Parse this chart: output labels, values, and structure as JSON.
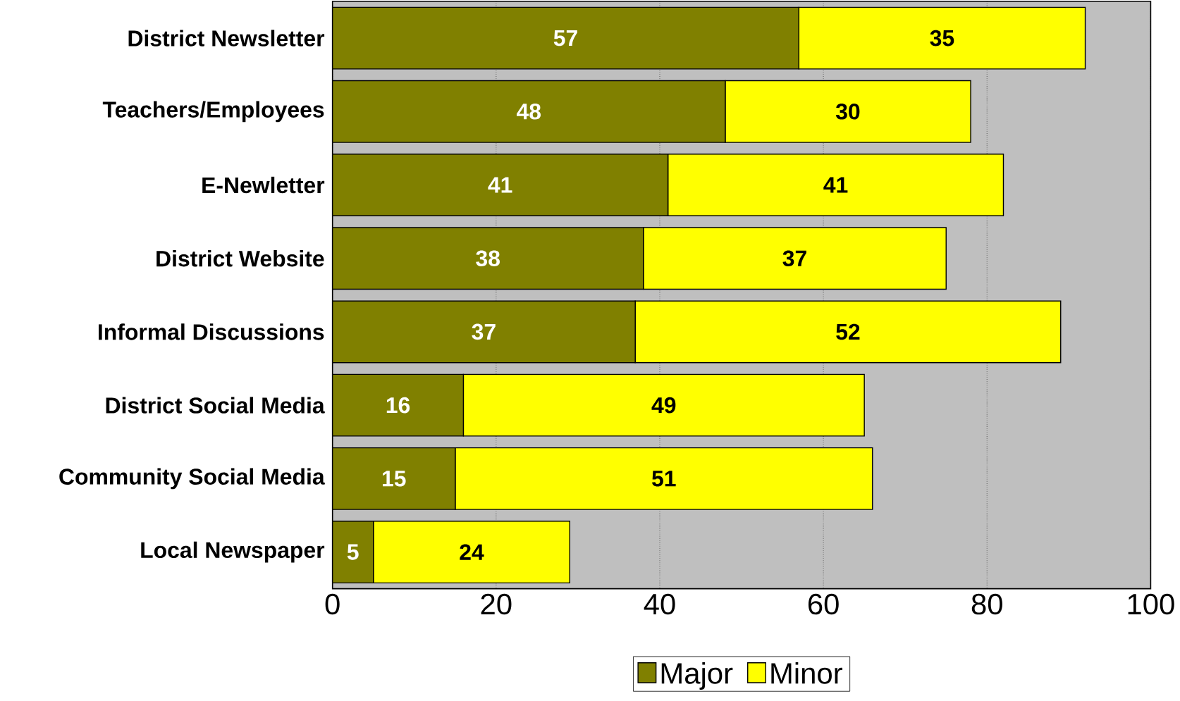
{
  "chart_data": {
    "type": "bar",
    "orientation": "horizontal",
    "stacked": true,
    "categories": [
      "District Newsletter",
      "Teachers/Employees",
      "E-Newletter",
      "District Website",
      "Informal Discussions",
      "District Social Media",
      "Community Social Media",
      "Local Newspaper"
    ],
    "series": [
      {
        "name": "Major",
        "color": "#808000",
        "values": [
          57,
          48,
          41,
          38,
          37,
          16,
          15,
          5
        ]
      },
      {
        "name": "Minor",
        "color": "#ffff00",
        "values": [
          35,
          30,
          41,
          37,
          52,
          49,
          51,
          24
        ]
      }
    ],
    "xlim": [
      0,
      100
    ],
    "xticks": [
      0,
      20,
      40,
      60,
      80,
      100
    ],
    "grid": "x",
    "legend": "bottom",
    "data_labels": true
  }
}
